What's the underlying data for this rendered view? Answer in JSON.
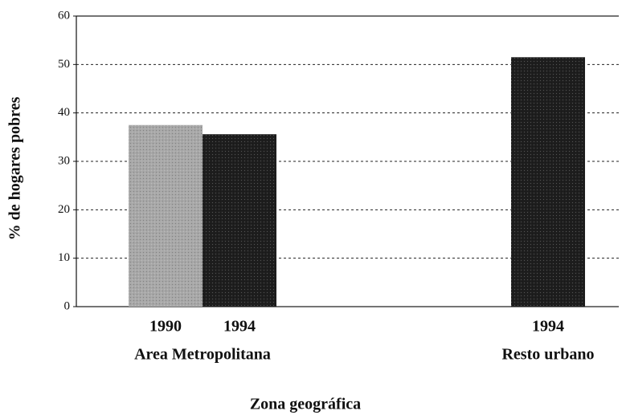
{
  "chart_data": {
    "type": "bar",
    "x_label": "Zona geográfica",
    "y_label": "% de hogares pobres",
    "categories": [
      "Area Metropolitana",
      "Resto urbano"
    ],
    "series": [
      {
        "name": "1990",
        "color": "#a8a8a8",
        "values": [
          37.5,
          null
        ]
      },
      {
        "name": "1994",
        "color": "#1e1e1e",
        "values": [
          35.6,
          51.5
        ]
      }
    ],
    "ylim": [
      0,
      60
    ],
    "yticks": [
      0,
      10,
      20,
      30,
      40,
      50,
      60
    ],
    "grid": true
  }
}
